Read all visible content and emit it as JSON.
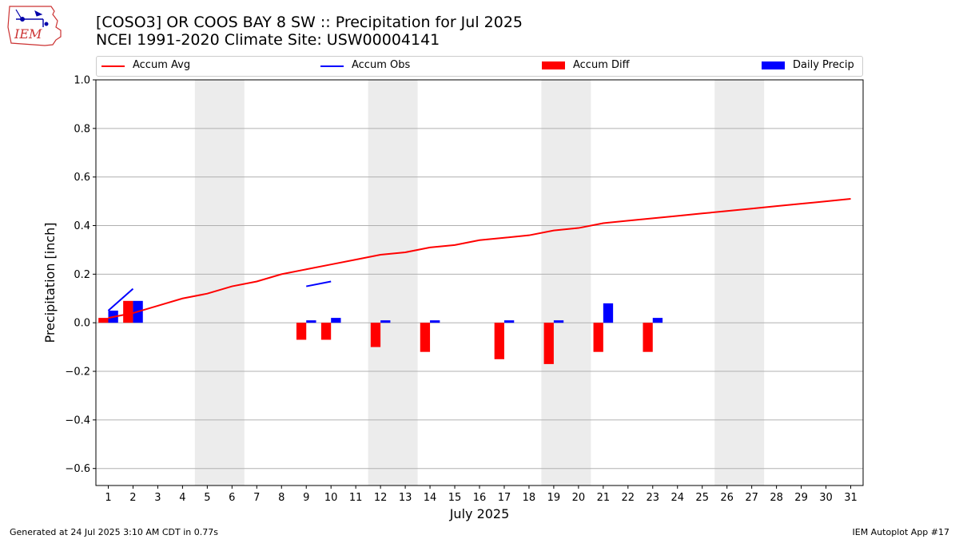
{
  "header": {
    "title_line1": "[COSO3] OR COOS BAY 8 SW :: Precipitation for Jul 2025",
    "title_line2": "NCEI 1991-2020 Climate Site: USW00004141",
    "logo_text": "IEM"
  },
  "legend": {
    "items": [
      {
        "label": "Accum Avg",
        "kind": "line",
        "color": "#ff0000"
      },
      {
        "label": "Accum Obs",
        "kind": "line",
        "color": "#0000ff"
      },
      {
        "label": "Accum Diff",
        "kind": "box",
        "color": "#ff0000"
      },
      {
        "label": "Daily Precip",
        "kind": "box",
        "color": "#0000ff"
      }
    ]
  },
  "footer": {
    "generated": "Generated at 24 Jul 2025 3:10 AM CDT in 0.77s",
    "app": "IEM Autoplot App #17"
  },
  "chart_data": {
    "type": "bar",
    "xlabel": "July 2025",
    "ylabel": "Precipitation [inch]",
    "ylim": [
      -0.67,
      1.0
    ],
    "xlim": [
      0.5,
      31.5
    ],
    "yticks": [
      -0.6,
      -0.4,
      -0.2,
      0.0,
      0.2,
      0.4,
      0.6,
      0.8,
      1.0
    ],
    "ytick_labels": [
      "−0.6",
      "−0.4",
      "−0.2",
      "0.0",
      "0.2",
      "0.4",
      "0.6",
      "0.8",
      "1.0"
    ],
    "days": [
      1,
      2,
      3,
      4,
      5,
      6,
      7,
      8,
      9,
      10,
      11,
      12,
      13,
      14,
      15,
      16,
      17,
      18,
      19,
      20,
      21,
      22,
      23,
      24,
      25,
      26,
      27,
      28,
      29,
      30,
      31
    ],
    "grid": "horizontal",
    "weekend_shading": [
      [
        4.5,
        6.5
      ],
      [
        11.5,
        13.5
      ],
      [
        18.5,
        20.5
      ],
      [
        25.5,
        27.5
      ]
    ],
    "shade_color": "#ececec",
    "series": [
      {
        "name": "Accum Avg",
        "type": "line",
        "color": "#ff0000",
        "x": [
          1,
          2,
          3,
          4,
          5,
          6,
          7,
          8,
          9,
          10,
          11,
          12,
          13,
          14,
          15,
          16,
          17,
          18,
          19,
          20,
          21,
          22,
          23,
          24,
          25,
          26,
          27,
          28,
          29,
          30,
          31
        ],
        "values": [
          0.02,
          0.04,
          0.07,
          0.1,
          0.12,
          0.15,
          0.17,
          0.2,
          0.22,
          0.24,
          0.26,
          0.28,
          0.29,
          0.31,
          0.32,
          0.34,
          0.35,
          0.36,
          0.38,
          0.39,
          0.41,
          0.42,
          0.43,
          0.44,
          0.45,
          0.46,
          0.47,
          0.48,
          0.49,
          0.5,
          0.51
        ]
      },
      {
        "name": "Accum Obs",
        "type": "line",
        "color": "#0000ff",
        "segments": [
          {
            "x": [
              1,
              2
            ],
            "values": [
              0.05,
              0.14
            ]
          },
          {
            "x": [
              9,
              10
            ],
            "values": [
              0.15,
              0.17
            ]
          }
        ]
      },
      {
        "name": "Accum Diff",
        "type": "bar",
        "color": "#ff0000",
        "x": [
          1,
          2,
          9,
          10,
          12,
          14,
          17,
          19,
          21,
          23
        ],
        "values": [
          0.02,
          0.09,
          -0.07,
          -0.07,
          -0.1,
          -0.12,
          -0.15,
          -0.17,
          -0.12,
          -0.12
        ]
      },
      {
        "name": "Daily Precip",
        "type": "bar",
        "color": "#0000ff",
        "x": [
          1,
          2,
          9,
          10,
          12,
          14,
          17,
          19,
          21,
          23
        ],
        "values": [
          0.05,
          0.09,
          0.01,
          0.02,
          0.01,
          0.01,
          0.01,
          0.01,
          0.08,
          0.02
        ]
      }
    ]
  }
}
